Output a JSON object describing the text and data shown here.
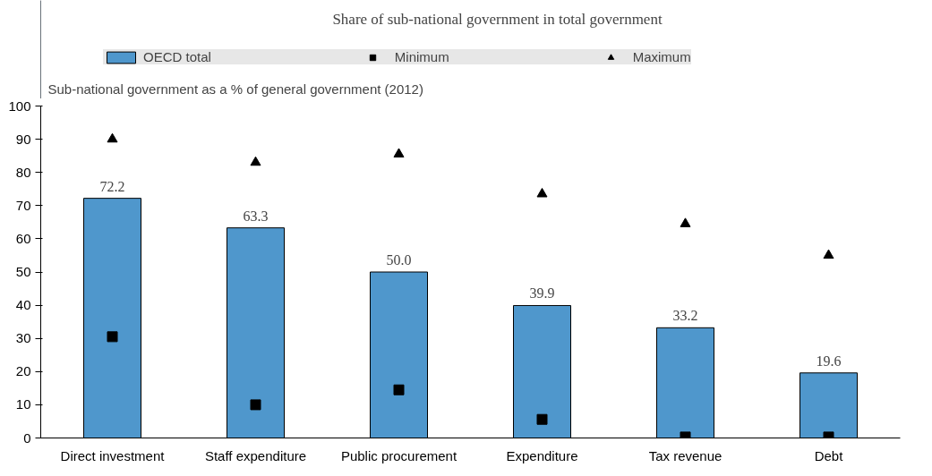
{
  "chart_data": {
    "type": "bar",
    "title": "Share of sub-national government in total government",
    "ylabel": "Sub-national government as a % of general government (2012)",
    "categories": [
      "Direct investment",
      "Staff expenditure",
      "Public procurement",
      "Expenditure",
      "Tax revenue",
      "Debt"
    ],
    "series": [
      {
        "name": "OECD total",
        "color": "#4f97cc",
        "values": [
          72.2,
          63.3,
          50.0,
          39.9,
          33.2,
          19.6
        ],
        "value_labels": [
          "72.2",
          "63.3",
          "50.0",
          "39.9",
          "33.2",
          "19.6"
        ]
      },
      {
        "name": "Minimum",
        "type": "scatter",
        "marker": "square",
        "color": "#000000",
        "values": [
          30.5,
          10,
          14.5,
          5.6,
          0.3,
          0.3
        ]
      },
      {
        "name": "Maximum",
        "type": "scatter",
        "marker": "triangle",
        "color": "#000000",
        "values": [
          90,
          83,
          85.5,
          73.5,
          64.5,
          55
        ]
      }
    ],
    "ylim": [
      0,
      100
    ],
    "yticks": [
      0,
      10,
      20,
      30,
      40,
      50,
      60,
      70,
      80,
      90,
      100
    ],
    "grid": false,
    "legend": "top"
  }
}
